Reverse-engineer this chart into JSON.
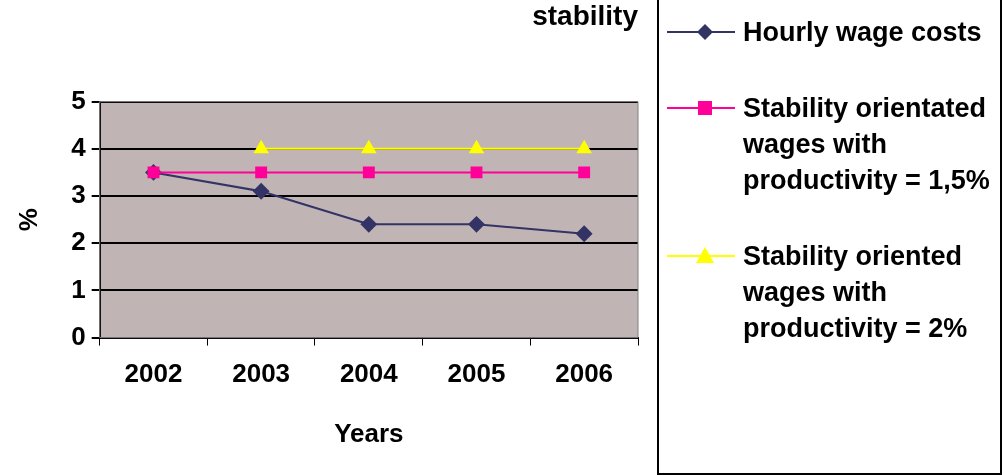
{
  "chart_data": {
    "type": "line",
    "title": "stability",
    "xlabel": "Years",
    "ylabel": "%",
    "categories": [
      "2002",
      "2003",
      "2004",
      "2005",
      "2006"
    ],
    "series": [
      {
        "name": "Hourly wage costs",
        "color": "#333366",
        "marker": "diamond",
        "values": [
          3.5,
          3.1,
          2.4,
          2.4,
          2.2
        ]
      },
      {
        "name": "Stability orientated wages with productivity = 1,5%",
        "color": "#ff0099",
        "marker": "square",
        "values": [
          3.5,
          3.5,
          3.5,
          3.5,
          3.5
        ]
      },
      {
        "name": "Stability oriented wages with productivity = 2%",
        "color": "#ffff00",
        "marker": "triangle",
        "values": [
          null,
          4,
          4,
          4,
          4
        ]
      }
    ],
    "ylim": [
      0,
      5
    ],
    "yticks": [
      0,
      1,
      2,
      3,
      4,
      5
    ],
    "grid": "y",
    "legend": "right",
    "line_style": "solid"
  }
}
